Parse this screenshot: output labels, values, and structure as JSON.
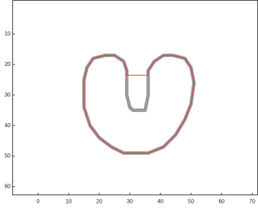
{
  "chart_data": {
    "type": "line",
    "xlim": [
      -8.3,
      71.8
    ],
    "ylim": [
      -1,
      62.7
    ],
    "y_reversed": true,
    "xticks": [
      0,
      10,
      20,
      30,
      40,
      50,
      60,
      70
    ],
    "yticks": [
      10,
      20,
      30,
      40,
      50,
      60
    ],
    "series": [
      {
        "color": "#9a9a9a",
        "width": 5,
        "x": [
          29,
          29,
          28,
          25,
          22,
          18,
          16,
          15,
          15,
          17,
          20,
          24,
          28,
          36,
          41,
          45,
          48,
          50,
          51,
          50,
          48,
          44,
          41,
          38,
          36,
          36,
          36,
          35,
          31,
          30,
          29,
          29
        ],
        "values": [
          23.5,
          22,
          19,
          17,
          17,
          18,
          21,
          25,
          34,
          40,
          44,
          47,
          49,
          49,
          47,
          43,
          38,
          33,
          26,
          21,
          18,
          17,
          17,
          19,
          22,
          23.5,
          30,
          35,
          35,
          34,
          30,
          23.5
        ]
      },
      {
        "color": "#e03030",
        "width": 1,
        "x": [
          29,
          29,
          28,
          25,
          22,
          18,
          16,
          15,
          15,
          17,
          20,
          24,
          28,
          36,
          41,
          45,
          48,
          50,
          51,
          50,
          48,
          44,
          41,
          38,
          36,
          36,
          29
        ],
        "values": [
          23.5,
          22,
          19,
          17,
          17,
          18,
          21,
          25,
          34,
          40,
          44,
          47,
          49,
          49,
          47,
          43,
          38,
          33,
          26,
          21,
          18,
          17,
          17,
          19,
          22,
          23.5,
          23.5
        ]
      }
    ]
  }
}
